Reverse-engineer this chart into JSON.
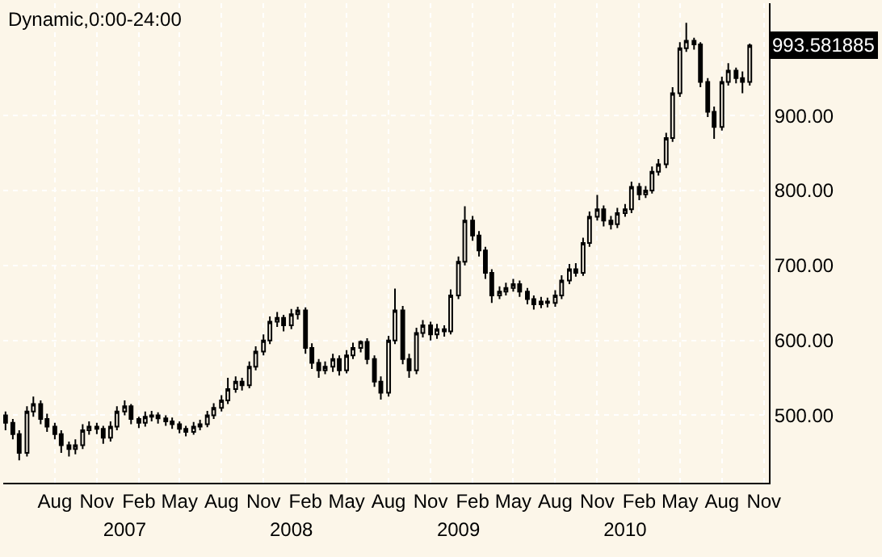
{
  "chart_data": {
    "type": "candlestick",
    "title": "Dynamic,0:00-24:00",
    "color": "#000000",
    "grid": true,
    "x": [
      "2006-04-15",
      "2006-05-01",
      "2006-05-15",
      "2006-06-01",
      "2006-06-15",
      "2006-07-01",
      "2006-07-15",
      "2006-08-01",
      "2006-08-15",
      "2006-09-01",
      "2006-09-15",
      "2006-10-01",
      "2006-10-15",
      "2006-11-01",
      "2006-11-15",
      "2006-12-01",
      "2006-12-15",
      "2007-01-01",
      "2007-01-15",
      "2007-02-01",
      "2007-02-15",
      "2007-03-01",
      "2007-03-15",
      "2007-04-01",
      "2007-04-15",
      "2007-05-01",
      "2007-05-15",
      "2007-06-01",
      "2007-06-15",
      "2007-07-01",
      "2007-07-15",
      "2007-08-01",
      "2007-08-15",
      "2007-09-01",
      "2007-09-15",
      "2007-10-01",
      "2007-10-15",
      "2007-11-01",
      "2007-11-15",
      "2007-12-01",
      "2007-12-15",
      "2008-01-01",
      "2008-01-15",
      "2008-02-01",
      "2008-02-15",
      "2008-03-01",
      "2008-03-15",
      "2008-04-01",
      "2008-04-15",
      "2008-05-01",
      "2008-05-15",
      "2008-06-01",
      "2008-06-15",
      "2008-07-01",
      "2008-07-15",
      "2008-08-01",
      "2008-08-15",
      "2008-09-01",
      "2008-09-15",
      "2008-10-01",
      "2008-10-15",
      "2008-11-01",
      "2008-11-15",
      "2008-12-01",
      "2008-12-15",
      "2009-01-01",
      "2009-01-15",
      "2009-02-01",
      "2009-02-15",
      "2009-03-01",
      "2009-03-15",
      "2009-04-01",
      "2009-04-15",
      "2009-05-01",
      "2009-05-15",
      "2009-06-01",
      "2009-06-15",
      "2009-07-01",
      "2009-07-15",
      "2009-08-01",
      "2009-08-15",
      "2009-09-01",
      "2009-09-15",
      "2009-10-01",
      "2009-10-15",
      "2009-11-01",
      "2009-11-15",
      "2009-12-01",
      "2009-12-15",
      "2010-01-01",
      "2010-01-15",
      "2010-02-01",
      "2010-02-15",
      "2010-03-01",
      "2010-03-15",
      "2010-04-01",
      "2010-04-15",
      "2010-05-01",
      "2010-05-15",
      "2010-06-01",
      "2010-06-15",
      "2010-07-01",
      "2010-07-15",
      "2010-08-01",
      "2010-08-15",
      "2010-09-01",
      "2010-09-15",
      "2010-10-01"
    ],
    "ohlc": [
      [
        500,
        505,
        480,
        490
      ],
      [
        490,
        495,
        468,
        475
      ],
      [
        475,
        480,
        440,
        450
      ],
      [
        450,
        512,
        445,
        505
      ],
      [
        505,
        525,
        498,
        515
      ],
      [
        515,
        520,
        488,
        495
      ],
      [
        495,
        502,
        478,
        485
      ],
      [
        485,
        490,
        468,
        475
      ],
      [
        475,
        480,
        450,
        460
      ],
      [
        460,
        465,
        445,
        455
      ],
      [
        455,
        468,
        448,
        460
      ],
      [
        460,
        488,
        455,
        480
      ],
      [
        480,
        492,
        474,
        485
      ],
      [
        485,
        490,
        475,
        482
      ],
      [
        482,
        486,
        462,
        470
      ],
      [
        470,
        492,
        465,
        485
      ],
      [
        485,
        512,
        480,
        505
      ],
      [
        505,
        520,
        500,
        512
      ],
      [
        512,
        515,
        488,
        495
      ],
      [
        495,
        498,
        483,
        490
      ],
      [
        490,
        505,
        485,
        498
      ],
      [
        498,
        506,
        492,
        500
      ],
      [
        500,
        504,
        489,
        496
      ],
      [
        496,
        500,
        486,
        492
      ],
      [
        492,
        497,
        482,
        488
      ],
      [
        488,
        492,
        476,
        482
      ],
      [
        482,
        486,
        472,
        478
      ],
      [
        478,
        491,
        474,
        485
      ],
      [
        485,
        494,
        480,
        488
      ],
      [
        488,
        506,
        484,
        500
      ],
      [
        500,
        516,
        495,
        510
      ],
      [
        510,
        527,
        505,
        520
      ],
      [
        520,
        550,
        515,
        535
      ],
      [
        535,
        552,
        530,
        545
      ],
      [
        545,
        550,
        533,
        540
      ],
      [
        540,
        572,
        536,
        565
      ],
      [
        565,
        592,
        560,
        585
      ],
      [
        585,
        608,
        580,
        600
      ],
      [
        600,
        632,
        595,
        625
      ],
      [
        625,
        638,
        618,
        630
      ],
      [
        630,
        634,
        612,
        620
      ],
      [
        620,
        642,
        615,
        635
      ],
      [
        635,
        645,
        628,
        640
      ],
      [
        640,
        644,
        582,
        590
      ],
      [
        590,
        596,
        562,
        570
      ],
      [
        570,
        575,
        550,
        560
      ],
      [
        560,
        572,
        555,
        565
      ],
      [
        565,
        582,
        558,
        575
      ],
      [
        575,
        580,
        553,
        560
      ],
      [
        560,
        587,
        556,
        580
      ],
      [
        580,
        597,
        575,
        590
      ],
      [
        590,
        600,
        584,
        598
      ],
      [
        598,
        603,
        568,
        575
      ],
      [
        575,
        580,
        538,
        545
      ],
      [
        545,
        552,
        521,
        530
      ],
      [
        530,
        606,
        525,
        600
      ],
      [
        600,
        669,
        595,
        640
      ],
      [
        640,
        646,
        568,
        575
      ],
      [
        575,
        582,
        550,
        560
      ],
      [
        560,
        617,
        555,
        610
      ],
      [
        610,
        627,
        604,
        620
      ],
      [
        620,
        625,
        600,
        608
      ],
      [
        608,
        622,
        602,
        615
      ],
      [
        615,
        620,
        605,
        612
      ],
      [
        612,
        668,
        608,
        660
      ],
      [
        660,
        712,
        655,
        705
      ],
      [
        705,
        779,
        700,
        760
      ],
      [
        760,
        766,
        733,
        740
      ],
      [
        740,
        746,
        712,
        720
      ],
      [
        720,
        725,
        682,
        690
      ],
      [
        690,
        695,
        650,
        660
      ],
      [
        660,
        672,
        655,
        665
      ],
      [
        665,
        677,
        660,
        670
      ],
      [
        670,
        682,
        665,
        675
      ],
      [
        675,
        680,
        658,
        665
      ],
      [
        665,
        670,
        648,
        655
      ],
      [
        655,
        660,
        641,
        648
      ],
      [
        648,
        658,
        643,
        652
      ],
      [
        652,
        657,
        644,
        650
      ],
      [
        650,
        667,
        645,
        660
      ],
      [
        660,
        687,
        655,
        680
      ],
      [
        680,
        702,
        675,
        695
      ],
      [
        695,
        703,
        685,
        690
      ],
      [
        690,
        737,
        686,
        730
      ],
      [
        730,
        772,
        725,
        765
      ],
      [
        765,
        794,
        760,
        775
      ],
      [
        775,
        780,
        752,
        760
      ],
      [
        760,
        766,
        748,
        755
      ],
      [
        755,
        777,
        750,
        770
      ],
      [
        770,
        782,
        765,
        775
      ],
      [
        775,
        812,
        770,
        805
      ],
      [
        805,
        810,
        787,
        795
      ],
      [
        795,
        806,
        790,
        800
      ],
      [
        800,
        832,
        796,
        825
      ],
      [
        825,
        842,
        820,
        835
      ],
      [
        835,
        877,
        830,
        870
      ],
      [
        870,
        938,
        865,
        930
      ],
      [
        930,
        998,
        925,
        990
      ],
      [
        990,
        1024,
        985,
        1000
      ],
      [
        1000,
        1004,
        988,
        995
      ],
      [
        995,
        998,
        938,
        945
      ],
      [
        945,
        950,
        898,
        905
      ],
      [
        905,
        912,
        869,
        885
      ],
      [
        885,
        952,
        880,
        945
      ],
      [
        945,
        970,
        940,
        960
      ],
      [
        960,
        964,
        943,
        950
      ],
      [
        950,
        959,
        930,
        945
      ],
      [
        945,
        996,
        940,
        993.581885
      ]
    ],
    "xlim": [
      "2006-04-10",
      "2010-11-12"
    ],
    "xticks": [
      {
        "value": "2006-08-01",
        "label": "Aug"
      },
      {
        "value": "2006-11-01",
        "label": "Nov"
      },
      {
        "value": "2007-02-01",
        "label": "Feb"
      },
      {
        "value": "2007-05-01",
        "label": "May"
      },
      {
        "value": "2007-08-01",
        "label": "Aug"
      },
      {
        "value": "2007-11-01",
        "label": "Nov"
      },
      {
        "value": "2008-02-01",
        "label": "Feb"
      },
      {
        "value": "2008-05-01",
        "label": "May"
      },
      {
        "value": "2008-08-01",
        "label": "Aug"
      },
      {
        "value": "2008-11-01",
        "label": "Nov"
      },
      {
        "value": "2009-02-01",
        "label": "Feb"
      },
      {
        "value": "2009-05-01",
        "label": "May"
      },
      {
        "value": "2009-08-01",
        "label": "Aug"
      },
      {
        "value": "2009-11-01",
        "label": "Nov"
      },
      {
        "value": "2010-02-01",
        "label": "Feb"
      },
      {
        "value": "2010-05-01",
        "label": "May"
      },
      {
        "value": "2010-08-01",
        "label": "Aug"
      },
      {
        "value": "2010-11-01",
        "label": "Nov"
      }
    ],
    "x2lim": [
      "2006-04-10",
      "2010-11-12"
    ],
    "x2ticks": [
      {
        "value": "2007-01-01",
        "label": "2007"
      },
      {
        "value": "2008-01-01",
        "label": "2008"
      },
      {
        "value": "2009-01-01",
        "label": "2009"
      },
      {
        "value": "2010-01-01",
        "label": "2010"
      }
    ],
    "ylim": [
      410,
      1050
    ],
    "yticks": [
      {
        "value": 500,
        "label": "500.00"
      },
      {
        "value": 600,
        "label": "600.00"
      },
      {
        "value": 700,
        "label": "700.00"
      },
      {
        "value": 800,
        "label": "800.00"
      },
      {
        "value": 900,
        "label": "900.00"
      }
    ],
    "annotations": [
      "993.581885"
    ]
  }
}
